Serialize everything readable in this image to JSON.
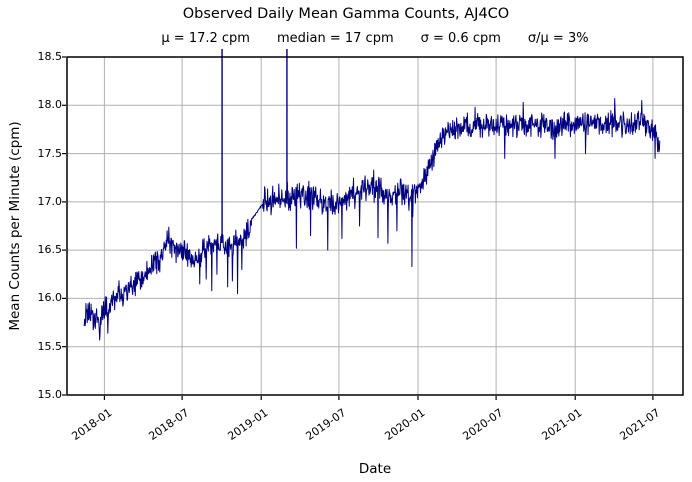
{
  "chart_data": {
    "type": "line",
    "title": "Observed Daily Mean Gamma Counts, AJ4CO",
    "subtitle_parts": [
      "μ = 17.2 cpm",
      "median = 17 cpm",
      "σ = 0.6 cpm",
      "σ/μ = 3%"
    ],
    "stats": {
      "mu_cpm": 17.2,
      "median_cpm": 17,
      "sigma_cpm": 0.6,
      "sigma_over_mu": "3%"
    },
    "xlabel": "Date",
    "ylabel": "Mean Counts per Minute (cpm)",
    "x_tick_labels": [
      "2018-01",
      "2018-07",
      "2019-01",
      "2019-07",
      "2020-01",
      "2020-07",
      "2021-01",
      "2021-07"
    ],
    "x_tick_days": [
      0,
      181,
      365,
      546,
      730,
      912,
      1096,
      1277
    ],
    "epoch": "2018-01-01",
    "xlim_days": [
      -87,
      1347
    ],
    "y_tick_labels": [
      "15.0",
      "15.5",
      "16.0",
      "16.5",
      "17.0",
      "17.5",
      "18.0",
      "18.5"
    ],
    "y_ticks": [
      15.0,
      15.5,
      16.0,
      16.5,
      17.0,
      17.5,
      18.0,
      18.5
    ],
    "ylim": [
      15.0,
      18.5
    ],
    "grid": true,
    "line_color": "#000080",
    "grid_color": "#b0b0b0",
    "axis_color": "#000000",
    "series": {
      "name": "daily mean gamma counts (cpm)",
      "start_day": -47,
      "end_day": 1293,
      "trend_points": [
        [
          -47,
          15.82
        ],
        [
          -40,
          15.8
        ],
        [
          -33,
          15.85
        ],
        [
          -25,
          15.78
        ],
        [
          -18,
          15.82
        ],
        [
          -11,
          15.72
        ],
        [
          -4,
          15.85
        ],
        [
          3,
          15.9
        ],
        [
          10,
          15.88
        ],
        [
          17,
          15.95
        ],
        [
          24,
          15.98
        ],
        [
          31,
          16.02
        ],
        [
          45,
          16.05
        ],
        [
          59,
          16.1
        ],
        [
          75,
          16.15
        ],
        [
          90,
          16.22
        ],
        [
          105,
          16.3
        ],
        [
          120,
          16.38
        ],
        [
          135,
          16.45
        ],
        [
          150,
          16.62
        ],
        [
          158,
          16.55
        ],
        [
          170,
          16.5
        ],
        [
          182,
          16.52
        ],
        [
          195,
          16.42
        ],
        [
          210,
          16.38
        ],
        [
          222,
          16.42
        ],
        [
          235,
          16.5
        ],
        [
          248,
          16.55
        ],
        [
          260,
          16.58
        ],
        [
          273,
          16.58
        ],
        [
          285,
          16.5
        ],
        [
          298,
          16.55
        ],
        [
          312,
          16.6
        ],
        [
          325,
          16.62
        ],
        [
          336,
          16.68
        ],
        [
          343,
          16.82
        ],
        [
          367,
          16.97
        ],
        [
          380,
          17.0
        ],
        [
          400,
          17.02
        ],
        [
          425,
          17.05
        ],
        [
          450,
          17.05
        ],
        [
          475,
          17.08
        ],
        [
          500,
          17.0
        ],
        [
          520,
          16.95
        ],
        [
          545,
          17.0
        ],
        [
          565,
          17.05
        ],
        [
          585,
          17.1
        ],
        [
          605,
          17.12
        ],
        [
          625,
          17.15
        ],
        [
          645,
          17.12
        ],
        [
          665,
          17.05
        ],
        [
          685,
          17.1
        ],
        [
          705,
          17.08
        ],
        [
          716,
          17.0
        ],
        [
          725,
          17.15
        ],
        [
          735,
          17.2
        ],
        [
          750,
          17.3
        ],
        [
          765,
          17.45
        ],
        [
          780,
          17.6
        ],
        [
          795,
          17.7
        ],
        [
          810,
          17.75
        ],
        [
          830,
          17.78
        ],
        [
          860,
          17.8
        ],
        [
          900,
          17.78
        ],
        [
          940,
          17.8
        ],
        [
          980,
          17.78
        ],
        [
          1020,
          17.8
        ],
        [
          1060,
          17.78
        ],
        [
          1100,
          17.8
        ],
        [
          1140,
          17.82
        ],
        [
          1180,
          17.8
        ],
        [
          1220,
          17.8
        ],
        [
          1255,
          17.82
        ],
        [
          1275,
          17.78
        ],
        [
          1293,
          17.6
        ]
      ],
      "noise": {
        "seed": 42,
        "segments": [
          {
            "from": -47,
            "to": 342,
            "amp": 0.16
          },
          {
            "from": 343,
            "to": 367,
            "amp": 0.015
          },
          {
            "from": 368,
            "to": 734,
            "amp": 0.19
          },
          {
            "from": 735,
            "to": 1293,
            "amp": 0.155
          }
        ]
      },
      "anomalies": [
        [
          -11,
          15.57
        ],
        [
          8,
          15.64
        ],
        [
          222,
          16.15
        ],
        [
          237,
          16.2
        ],
        [
          250,
          16.08
        ],
        [
          262,
          16.25
        ],
        [
          287,
          16.12
        ],
        [
          298,
          16.18
        ],
        [
          310,
          16.05
        ],
        [
          320,
          16.3
        ],
        [
          447,
          16.52
        ],
        [
          480,
          16.65
        ],
        [
          520,
          16.5
        ],
        [
          553,
          16.62
        ],
        [
          594,
          16.75
        ],
        [
          637,
          16.63
        ],
        [
          660,
          16.57
        ],
        [
          681,
          16.7
        ],
        [
          716,
          16.33
        ],
        [
          863,
          17.98
        ],
        [
          932,
          17.45
        ],
        [
          975,
          18.03
        ],
        [
          1049,
          17.45
        ],
        [
          1120,
          17.5
        ],
        [
          1188,
          18.07
        ],
        [
          1251,
          18.05
        ],
        [
          1282,
          17.45
        ]
      ],
      "upward_spike_days": [
        274,
        425
      ],
      "upward_spikes_note": "off-scale spikes above 18.5 cpm, clipped at top of axes"
    }
  }
}
